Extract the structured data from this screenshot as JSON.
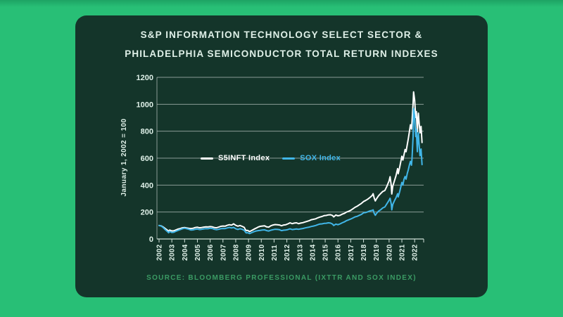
{
  "card": {
    "title_line1": "S&P INFORMATION TECHNOLOGY SELECT SECTOR &",
    "title_line2": "PHILADELPHIA SEMICONDUCTOR TOTAL RETURN INDEXES",
    "source": "SOURCE: BLOOMBERG PROFESSIONAL (IXTTR AND SOX INDEX)"
  },
  "colors": {
    "background_green": "#28bf76",
    "card_green": "#14352a",
    "title_text": "#dff0e8",
    "source_text": "#3b9b64",
    "grid_line": "rgba(255,255,255,0.5)",
    "axis_line": "#cfe0d8",
    "s5inft_line": "#ffffff",
    "sox_line": "#41b6e8"
  },
  "chart_data": {
    "type": "line",
    "title": "S&P INFORMATION TECHNOLOGY SELECT SECTOR & PHILADELPHIA SEMICONDUCTOR TOTAL RETURN INDEXES",
    "xlabel": "",
    "ylabel": "January 1, 2002 = 100",
    "ylim": [
      0,
      1200
    ],
    "yticks": [
      0,
      200,
      400,
      600,
      800,
      1000,
      1200
    ],
    "xticks": [
      2002,
      2003,
      2004,
      2005,
      2006,
      2007,
      2008,
      2009,
      2010,
      2011,
      2012,
      2013,
      2014,
      2015,
      2016,
      2017,
      2018,
      2019,
      2020,
      2021,
      2022
    ],
    "grid": true,
    "legend_position": "inside-upper-left",
    "x": [
      2002.0,
      2002.17,
      2002.33,
      2002.5,
      2002.67,
      2002.75,
      2002.83,
      2002.92,
      2003.0,
      2003.17,
      2003.33,
      2003.5,
      2003.67,
      2003.83,
      2004.0,
      2004.17,
      2004.33,
      2004.5,
      2004.67,
      2004.83,
      2005.0,
      2005.17,
      2005.33,
      2005.5,
      2005.67,
      2005.83,
      2006.0,
      2006.17,
      2006.33,
      2006.5,
      2006.67,
      2006.83,
      2007.0,
      2007.17,
      2007.33,
      2007.5,
      2007.67,
      2007.83,
      2008.0,
      2008.17,
      2008.33,
      2008.5,
      2008.67,
      2008.75,
      2008.83,
      2008.92,
      2009.0,
      2009.08,
      2009.25,
      2009.42,
      2009.58,
      2009.75,
      2009.92,
      2010.08,
      2010.25,
      2010.42,
      2010.58,
      2010.75,
      2010.92,
      2011.08,
      2011.25,
      2011.42,
      2011.58,
      2011.75,
      2011.92,
      2012.08,
      2012.25,
      2012.42,
      2012.58,
      2012.75,
      2012.92,
      2013.08,
      2013.25,
      2013.42,
      2013.58,
      2013.75,
      2013.92,
      2014.08,
      2014.25,
      2014.42,
      2014.58,
      2014.75,
      2014.92,
      2015.08,
      2015.25,
      2015.42,
      2015.58,
      2015.67,
      2015.83,
      2016.0,
      2016.17,
      2016.33,
      2016.5,
      2016.67,
      2016.83,
      2017.0,
      2017.17,
      2017.33,
      2017.5,
      2017.67,
      2017.83,
      2018.0,
      2018.17,
      2018.33,
      2018.5,
      2018.67,
      2018.75,
      2018.83,
      2018.92,
      2019.0,
      2019.17,
      2019.33,
      2019.5,
      2019.67,
      2019.83,
      2020.0,
      2020.08,
      2020.17,
      2020.21,
      2020.29,
      2020.42,
      2020.54,
      2020.67,
      2020.71,
      2020.83,
      2020.92,
      2021.0,
      2021.08,
      2021.17,
      2021.25,
      2021.33,
      2021.42,
      2021.5,
      2021.58,
      2021.67,
      2021.75,
      2021.79,
      2021.88,
      2021.92,
      2022.0,
      2022.04,
      2022.08,
      2022.13,
      2022.17,
      2022.21,
      2022.25,
      2022.29,
      2022.33,
      2022.42,
      2022.5,
      2022.58
    ],
    "series": [
      {
        "name": "S5INFT Index",
        "color": "#ffffff",
        "values": [
          100,
          97,
          88,
          76,
          64,
          58,
          66,
          63,
          60,
          61,
          68,
          74,
          78,
          83,
          85,
          82,
          79,
          77,
          80,
          85,
          87,
          83,
          85,
          88,
          90,
          89,
          92,
          90,
          85,
          83,
          88,
          94,
          96,
          95,
          101,
          106,
          103,
          112,
          101,
          95,
          100,
          94,
          86,
          70,
          62,
          64,
          60,
          55,
          63,
          72,
          80,
          88,
          94,
          96,
          98,
          90,
          88,
          98,
          104,
          107,
          106,
          104,
          98,
          104,
          106,
          112,
          120,
          114,
          118,
          120,
          114,
          118,
          121,
          126,
          131,
          136,
          143,
          146,
          150,
          157,
          163,
          167,
          173,
          175,
          179,
          180,
          174,
          164,
          178,
          172,
          176,
          184,
          190,
          200,
          205,
          213,
          224,
          235,
          243,
          254,
          264,
          278,
          286,
          296,
          308,
          322,
          336,
          306,
          282,
          296,
          320,
          336,
          352,
          360,
          392,
          432,
          462,
          396,
          334,
          392,
          432,
          470,
          522,
          484,
          534,
          576,
          614,
          586,
          626,
          664,
          648,
          700,
          742,
          792,
          848,
          816,
          866,
          1008,
          1092,
          1032,
          972,
          902,
          946,
          862,
          796,
          876,
          934,
          884,
          788,
          836,
          716
        ]
      },
      {
        "name": "SOX Index",
        "color": "#41b6e8",
        "values": [
          100,
          96,
          84,
          68,
          54,
          46,
          56,
          52,
          48,
          50,
          58,
          64,
          70,
          76,
          80,
          76,
          72,
          66,
          68,
          72,
          74,
          70,
          72,
          75,
          77,
          76,
          80,
          78,
          72,
          69,
          72,
          76,
          78,
          77,
          82,
          86,
          82,
          86,
          76,
          71,
          76,
          72,
          64,
          52,
          45,
          47,
          44,
          40,
          47,
          54,
          59,
          62,
          64,
          66,
          68,
          62,
          59,
          65,
          69,
          72,
          71,
          69,
          62,
          65,
          66,
          70,
          75,
          70,
          72,
          74,
          72,
          75,
          78,
          82,
          85,
          88,
          93,
          96,
          100,
          106,
          111,
          112,
          116,
          117,
          120,
          118,
          110,
          100,
          110,
          106,
          112,
          120,
          127,
          136,
          142,
          148,
          156,
          164,
          168,
          176,
          182,
          194,
          196,
          202,
          208,
          212,
          216,
          192,
          176,
          188,
          206,
          216,
          230,
          238,
          262,
          288,
          302,
          258,
          216,
          256,
          284,
          306,
          336,
          312,
          352,
          388,
          420,
          400,
          444,
          464,
          444,
          486,
          512,
          546,
          576,
          548,
          592,
          760,
          968,
          912,
          836,
          760,
          816,
          724,
          648,
          736,
          788,
          726,
          618,
          668,
          552
        ]
      }
    ],
    "source": "SOURCE: BLOOMBERG PROFESSIONAL (IXTTR AND SOX INDEX)"
  }
}
